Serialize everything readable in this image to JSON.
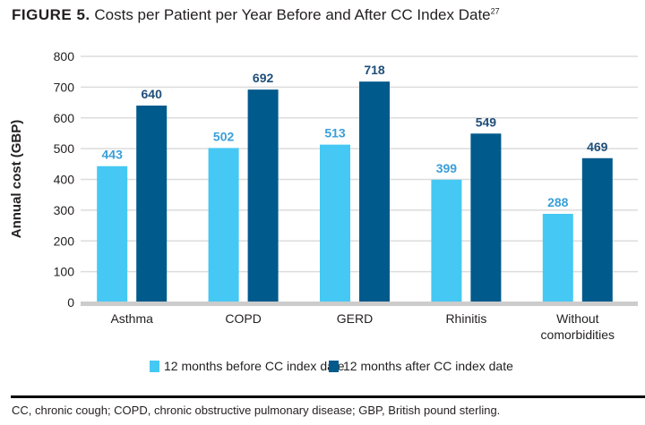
{
  "figure": {
    "label": "FIGURE 5.",
    "title": "Costs per Patient per Year Before and After CC Index Date",
    "superscript": "27"
  },
  "footnote": "CC, chronic cough; COPD, chronic obstructive pulmonary disease; GBP, British pound sterling.",
  "chart_data": {
    "type": "bar",
    "title": "Costs per Patient per Year Before and After CC Index Date",
    "xlabel": "",
    "ylabel": "Annual cost (GBP)",
    "ylim": [
      0,
      800
    ],
    "yticks": [
      0,
      100,
      200,
      300,
      400,
      500,
      600,
      700,
      800
    ],
    "grid": true,
    "legend_position": "bottom",
    "categories": [
      "Asthma",
      "COPD",
      "GERD",
      "Rhinitis",
      "Without\ncomorbidities"
    ],
    "series": [
      {
        "name": "12 months before CC index date",
        "color": "#45c8f3",
        "label_color": "#3a9fd8",
        "values": [
          443,
          502,
          513,
          399,
          288
        ]
      },
      {
        "name": "12 months after CC index date",
        "color": "#005a8c",
        "label_color": "#1f4e79",
        "values": [
          640,
          692,
          718,
          549,
          469
        ]
      }
    ]
  }
}
